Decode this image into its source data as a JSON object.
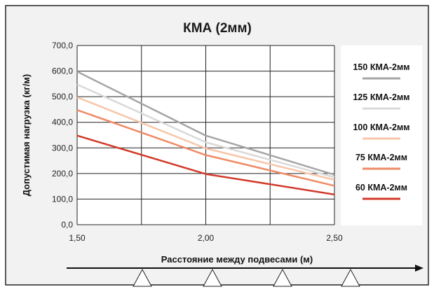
{
  "chart_data": {
    "type": "line",
    "title": "КМА (2мм)",
    "xlabel": "Расстояние между подвесами (м)",
    "ylabel": "Допустимая нагрузка (кг/м)",
    "x": [
      1.5,
      2.0,
      2.5
    ],
    "xticks": [
      "1,50",
      "2,00",
      "2,50"
    ],
    "yticks": [
      "0,0",
      "100,0",
      "200,0",
      "300,0",
      "400,0",
      "500,0",
      "600,0",
      "700,0"
    ],
    "xlim": [
      1.5,
      2.5
    ],
    "ylim": [
      0,
      700
    ],
    "grid": true,
    "legend_position": "right",
    "series": [
      {
        "name": "150 КМА-2мм",
        "values": [
          598,
          348,
          195
        ],
        "color": "#a6a6a6"
      },
      {
        "name": "125 КМА-2мм",
        "values": [
          548,
          322,
          185
        ],
        "color": "#d9d9d9"
      },
      {
        "name": "100 КМА-2мм",
        "values": [
          498,
          298,
          175
        ],
        "color": "#f7c6a8"
      },
      {
        "name": "75 КМА-2мм",
        "values": [
          448,
          272,
          152
        ],
        "color": "#ee8a66"
      },
      {
        "name": "60 КМА-2мм",
        "values": [
          348,
          198,
          118
        ],
        "color": "#d23a2a"
      }
    ]
  },
  "colors": {
    "background": "#f2f2f2",
    "plot_area": "#ffffff",
    "grid": "#222222",
    "frame": "#222222"
  },
  "icons": {
    "support": "triangle-support-icon",
    "arrow": "arrow-right-icon"
  }
}
